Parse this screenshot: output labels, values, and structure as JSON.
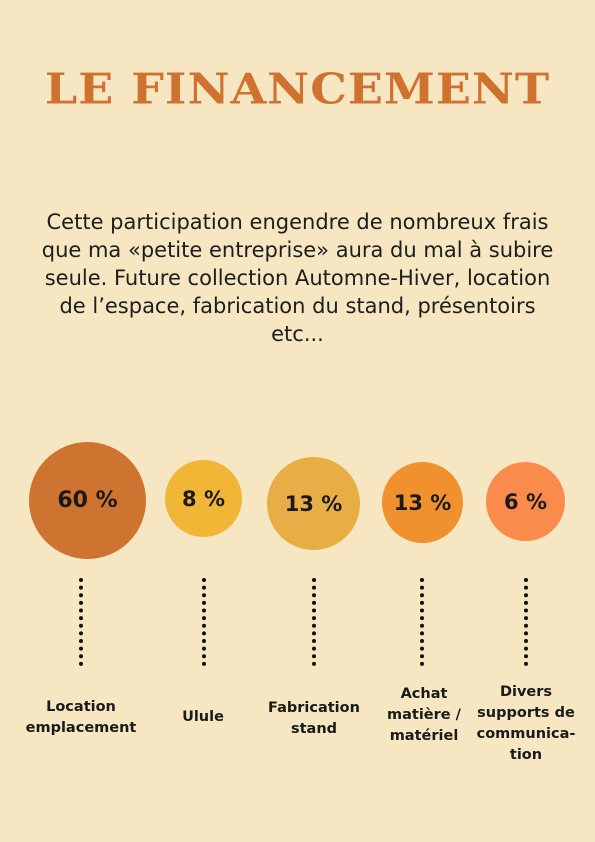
{
  "title": "LE FINANCEMENT",
  "intro": "Cette participation engendre de nombreux frais que ma «petite entreprise» aura du mal à subire seule. Future collection Automne-Hiver, location de l’espace, fabrication du stand, présentoirs etc...",
  "items": [
    {
      "percent_label": "60 %",
      "value": 60,
      "color": "#cf7331",
      "label": "Location\nemplacement"
    },
    {
      "percent_label": "8 %",
      "value": 8,
      "color": "#f2b637",
      "label": "Ulule"
    },
    {
      "percent_label": "13 %",
      "value": 13,
      "color": "#e6ae45",
      "label": "Fabrication\nstand"
    },
    {
      "percent_label": "13 %",
      "value": 13,
      "color": "#f0912e",
      "label": "Achat\nmatière /\nmatériel"
    },
    {
      "percent_label": "6 %",
      "value": 6,
      "color": "#fb8b4c",
      "label": "Divers\nsupports de\ncommunica-\ntion"
    }
  ]
}
